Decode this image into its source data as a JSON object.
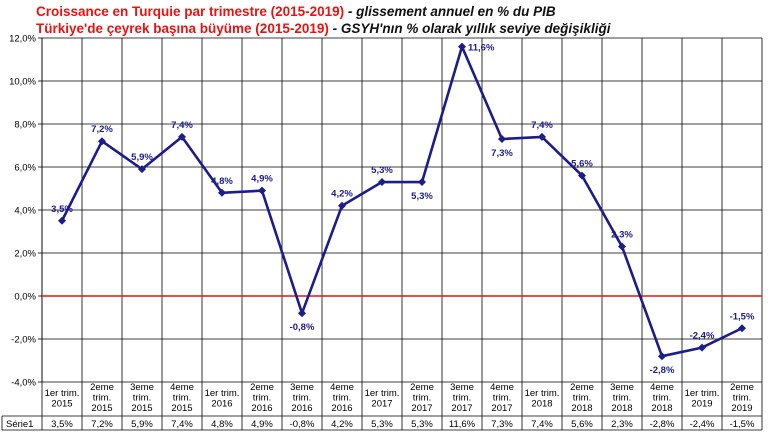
{
  "title": {
    "line1_main": "Croissance  en Turquie par trimestre (2015-2019)",
    "line1_sub": " - glissement annuel en % du PIB",
    "line2_main": "Türkiye'de çeyrek başına büyüme (2015-2019)",
    "line2_sub": " - GSYH'nın % olarak yıllık seviye değişikliği"
  },
  "colors": {
    "series": "#1c1c8a",
    "zero_line": "#e8120f",
    "title": "#e8120f",
    "grid": "#000000"
  },
  "chart_data": {
    "type": "line",
    "title": "Croissance  en Turquie par trimestre (2015-2019) - glissement annuel en % du PIB",
    "ylabel": "",
    "xlabel": "",
    "ylim": [
      -4,
      12
    ],
    "ytick_step": 2,
    "ytick_labels": [
      "12,0%",
      "10,0%",
      "8,0%",
      "6,0%",
      "4,0%",
      "2,0%",
      "0,0%",
      "-2,0%",
      "-4,0%"
    ],
    "grid": true,
    "legend": "data table below chart",
    "categories": [
      [
        "1er trim.",
        "2015"
      ],
      [
        "2eme",
        "trim.",
        "2015"
      ],
      [
        "3eme",
        "trim.",
        "2015"
      ],
      [
        "4eme",
        "trim.",
        "2015"
      ],
      [
        "1er trim.",
        "2016"
      ],
      [
        "2eme",
        "trim.",
        "2016"
      ],
      [
        "3eme",
        "trim.",
        "2016"
      ],
      [
        "4eme",
        "trim.",
        "2016"
      ],
      [
        "1er trim.",
        "2017"
      ],
      [
        "2eme",
        "trim.",
        "2017"
      ],
      [
        "3eme",
        "trim.",
        "2017"
      ],
      [
        "4eme",
        "trim.",
        "2017"
      ],
      [
        "1er trim.",
        "2018"
      ],
      [
        "2eme",
        "trim.",
        "2018"
      ],
      [
        "3eme",
        "trim.",
        "2018"
      ],
      [
        "4eme",
        "trim.",
        "2018"
      ],
      [
        "1er trim.",
        "2019"
      ],
      [
        "2eme",
        "trim.",
        "2019"
      ]
    ],
    "series": [
      {
        "name": "Série1",
        "values": [
          3.5,
          7.2,
          5.9,
          7.4,
          4.8,
          4.9,
          -0.8,
          4.2,
          5.3,
          5.3,
          11.6,
          7.3,
          7.4,
          5.6,
          2.3,
          -2.8,
          -2.4,
          -1.5
        ],
        "labels": [
          "3,5%",
          "7,2%",
          "5,9%",
          "7,4%",
          "4,8%",
          "4,9%",
          "-0,8%",
          "4,2%",
          "5,3%",
          "5,3%",
          "11,6%",
          "7,3%",
          "7,4%",
          "5,6%",
          "2,3%",
          "-2,8%",
          "-2,4%",
          "-1,5%"
        ]
      }
    ]
  }
}
